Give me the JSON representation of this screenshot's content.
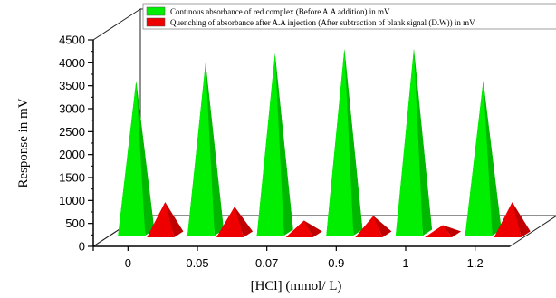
{
  "chart_data": {
    "type": "bar",
    "style": "3d-pyramid",
    "categories": [
      "0",
      "0.05",
      "0.07",
      "0.9",
      "1",
      "1.2"
    ],
    "series": [
      {
        "name": "Continous absorbance of red complex  (Before A.A addition) in mV",
        "color": "#00ee00",
        "values": [
          3600,
          4000,
          4200,
          4300,
          4300,
          3600
        ]
      },
      {
        "name": "Quenching of  absorbance after A.A injection (After subtraction of blank signal (D.W)) in mV",
        "color": "#ee0000",
        "values": [
          1000,
          900,
          600,
          700,
          500,
          1000
        ]
      }
    ],
    "xlabel": "[HCl] (mmol/ L)",
    "ylabel": "Response in mV",
    "ylim": [
      0,
      4500
    ],
    "yticks": [
      "0",
      "500",
      "1000",
      "1500",
      "2000",
      "2500",
      "3000",
      "3500",
      "4000",
      "4500"
    ],
    "legend_position": "top"
  }
}
